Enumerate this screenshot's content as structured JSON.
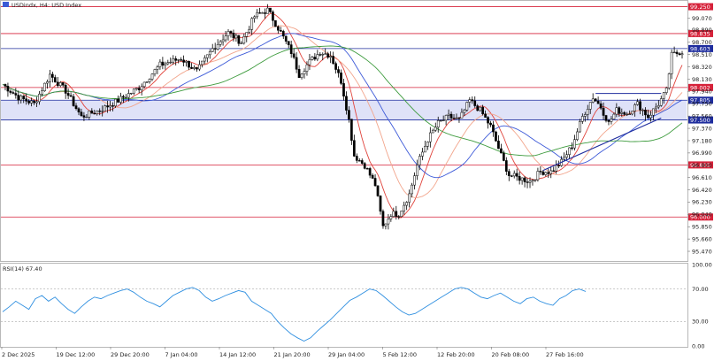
{
  "header": {
    "symbol_title": "USDindx, H4:  USD Index",
    "rsi_label": "RSI(14) 67.40"
  },
  "colors": {
    "level_line": "#d6223a",
    "support_line": "#1f2d9e",
    "zone_fill": "#dfe2f8",
    "ma_red": "#e0443c",
    "ma_salmon": "#f2a58c",
    "ma_blue": "#3d5ad8",
    "ma_green": "#3d9b3d",
    "rsi_line": "#2f8fe0",
    "candle": "#000000"
  },
  "chart_data": [
    {
      "type": "candlestick",
      "title": "USDindx, H4:  USD Index",
      "ylim": [
        95.32,
        99.34
      ],
      "x_tick_labels": [
        "2 Dec 2025",
        "19 Dec 12:00",
        "29 Dec 20:00",
        "7 Jan 04:00",
        "14 Jan 12:00",
        "21 Jan 20:00",
        "29 Jan 04:00",
        "5 Feb 12:00",
        "12 Feb 20:00",
        "20 Feb 08:00",
        "27 Feb 16:00"
      ],
      "y_tick_labels": [
        "99.070",
        "98.890",
        "98.700",
        "98.510",
        "98.320",
        "98.130",
        "97.940",
        "97.750",
        "97.560",
        "97.370",
        "97.180",
        "96.990",
        "96.800",
        "96.610",
        "96.420",
        "96.230",
        "96.040",
        "95.850",
        "95.660",
        "95.470"
      ],
      "price_levels": [
        {
          "label": "99.250",
          "kind": "resistance"
        },
        {
          "label": "98.835",
          "kind": "resistance"
        },
        {
          "label": "98.603",
          "kind": "current"
        },
        {
          "label": "98.002",
          "kind": "resistance"
        },
        {
          "label": "97.805",
          "kind": "zone-top"
        },
        {
          "label": "97.500",
          "kind": "zone-bottom"
        },
        {
          "label": "96.805",
          "kind": "support"
        },
        {
          "label": "96.000",
          "kind": "support"
        }
      ],
      "highlight_zone": {
        "from": 97.5,
        "to": 97.805
      },
      "ohlc_anchors": [
        {
          "t": 0,
          "close": 98.05
        },
        {
          "t": 6,
          "close": 97.85
        },
        {
          "t": 12,
          "close": 97.75
        },
        {
          "t": 18,
          "close": 98.2
        },
        {
          "t": 24,
          "close": 97.95
        },
        {
          "t": 30,
          "close": 97.55
        },
        {
          "t": 37,
          "close": 97.65
        },
        {
          "t": 44,
          "close": 97.8
        },
        {
          "t": 52,
          "close": 98.0
        },
        {
          "t": 60,
          "close": 98.35
        },
        {
          "t": 68,
          "close": 98.45
        },
        {
          "t": 74,
          "close": 98.25
        },
        {
          "t": 80,
          "close": 98.6
        },
        {
          "t": 86,
          "close": 98.85
        },
        {
          "t": 91,
          "close": 98.7
        },
        {
          "t": 96,
          "close": 99.1
        },
        {
          "t": 101,
          "close": 99.2
        },
        {
          "t": 106,
          "close": 98.85
        },
        {
          "t": 110,
          "close": 98.55
        },
        {
          "t": 113,
          "close": 98.2
        },
        {
          "t": 117,
          "close": 98.4
        },
        {
          "t": 121,
          "close": 98.55
        },
        {
          "t": 125,
          "close": 98.5
        },
        {
          "t": 129,
          "close": 98.1
        },
        {
          "t": 132,
          "close": 97.5
        },
        {
          "t": 134,
          "close": 96.95
        },
        {
          "t": 138,
          "close": 96.8
        },
        {
          "t": 142,
          "close": 96.5
        },
        {
          "t": 145,
          "close": 95.85
        },
        {
          "t": 148,
          "close": 96.05
        },
        {
          "t": 151,
          "close": 96.05
        },
        {
          "t": 155,
          "close": 96.35
        },
        {
          "t": 158,
          "close": 96.8
        },
        {
          "t": 162,
          "close": 97.2
        },
        {
          "t": 166,
          "close": 97.45
        },
        {
          "t": 170,
          "close": 97.55
        },
        {
          "t": 174,
          "close": 97.5
        },
        {
          "t": 178,
          "close": 97.8
        },
        {
          "t": 182,
          "close": 97.65
        },
        {
          "t": 186,
          "close": 97.4
        },
        {
          "t": 190,
          "close": 96.95
        },
        {
          "t": 193,
          "close": 96.65
        },
        {
          "t": 197,
          "close": 96.6
        },
        {
          "t": 201,
          "close": 96.55
        },
        {
          "t": 205,
          "close": 96.7
        },
        {
          "t": 209,
          "close": 96.7
        },
        {
          "t": 213,
          "close": 96.85
        },
        {
          "t": 217,
          "close": 97.1
        },
        {
          "t": 221,
          "close": 97.55
        },
        {
          "t": 225,
          "close": 97.85
        },
        {
          "t": 228,
          "close": 97.7
        },
        {
          "t": 231,
          "close": 97.45
        },
        {
          "t": 234,
          "close": 97.65
        },
        {
          "t": 238,
          "close": 97.6
        },
        {
          "t": 242,
          "close": 97.75
        },
        {
          "t": 246,
          "close": 97.55
        },
        {
          "t": 250,
          "close": 97.75
        },
        {
          "t": 253,
          "close": 97.95
        },
        {
          "t": 255,
          "close": 98.5
        },
        {
          "t": 258,
          "close": 98.55
        }
      ]
    },
    {
      "type": "line",
      "title": "RSI(14) 67.40",
      "ylim": [
        0,
        100
      ],
      "y_tick_labels": [
        "100.00",
        "70.00",
        "30.00",
        "0.00"
      ],
      "values": [
        42,
        48,
        55,
        50,
        45,
        58,
        62,
        55,
        60,
        52,
        45,
        40,
        48,
        55,
        60,
        58,
        62,
        65,
        68,
        70,
        66,
        60,
        55,
        52,
        48,
        55,
        62,
        66,
        70,
        72,
        68,
        60,
        55,
        58,
        62,
        65,
        68,
        66,
        55,
        50,
        45,
        40,
        30,
        22,
        15,
        10,
        6,
        10,
        18,
        25,
        32,
        40,
        48,
        56,
        60,
        65,
        70,
        68,
        62,
        55,
        48,
        42,
        38,
        40,
        45,
        50,
        55,
        60,
        65,
        70,
        72,
        70,
        65,
        60,
        58,
        62,
        65,
        60,
        55,
        52,
        58,
        60,
        55,
        52,
        50,
        58,
        62,
        68,
        70,
        67
      ]
    }
  ]
}
